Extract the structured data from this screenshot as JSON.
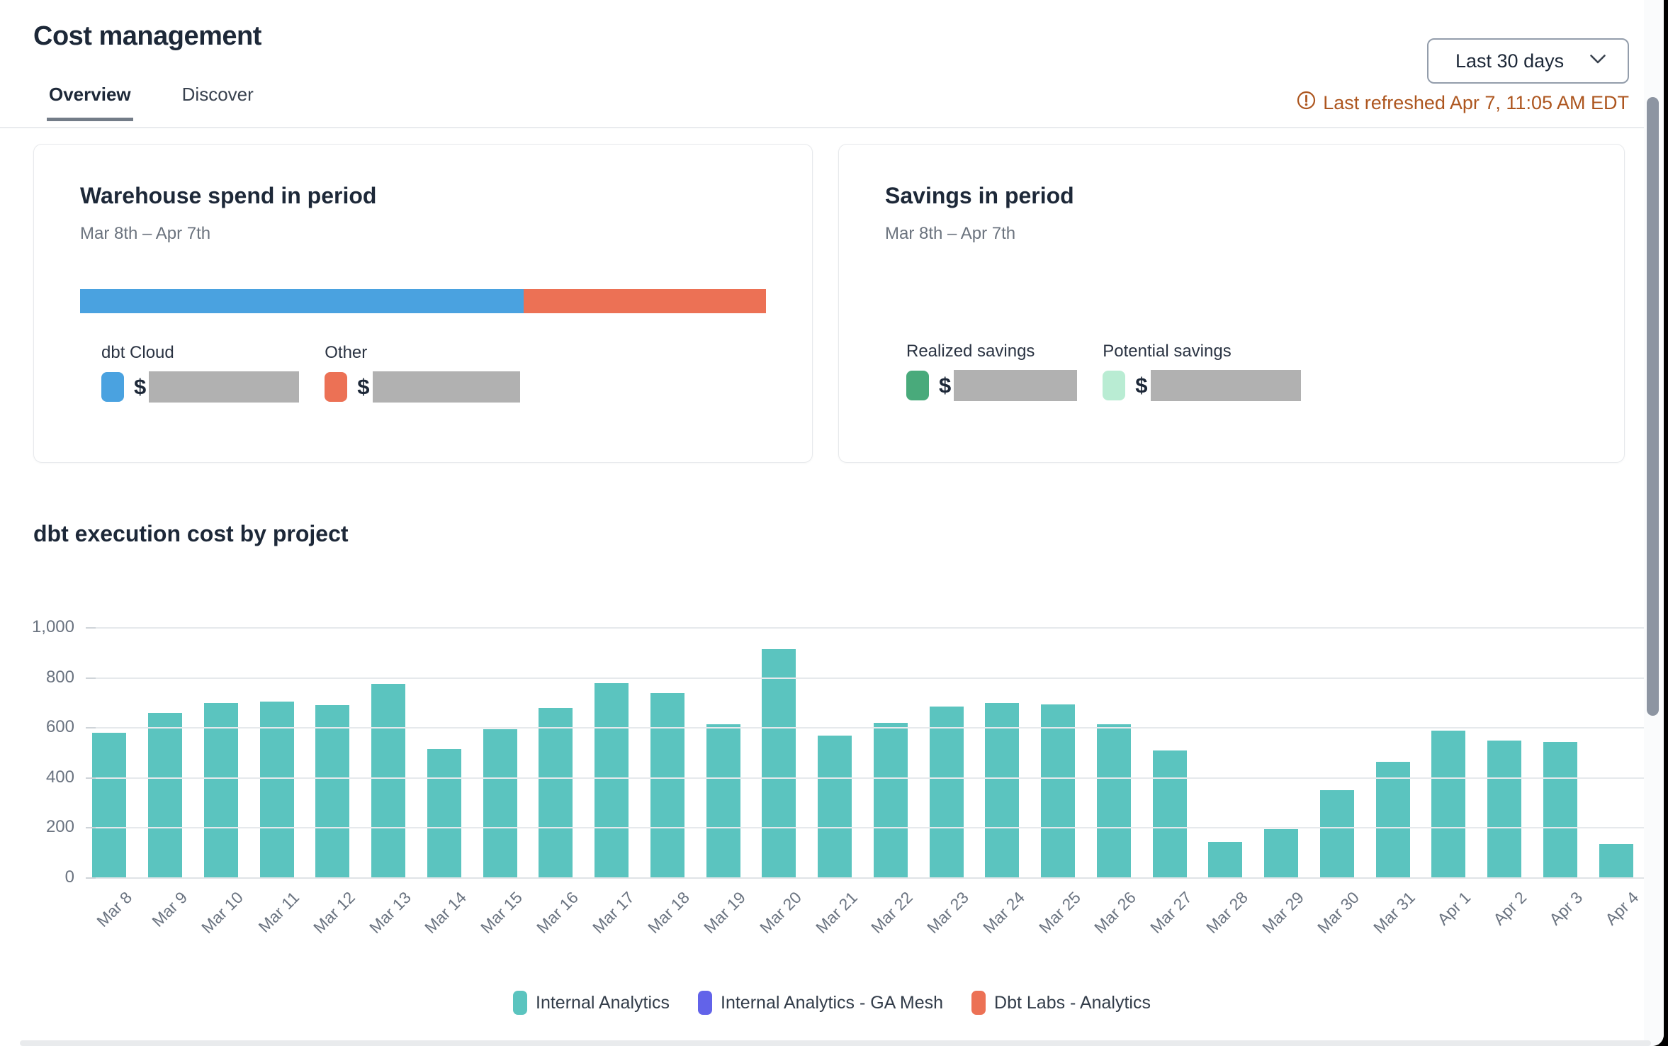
{
  "header": {
    "title": "Cost management",
    "range_label": "Last 30 days",
    "last_refreshed": "Last refreshed Apr 7, 11:05 AM EDT"
  },
  "tabs": [
    {
      "label": "Overview",
      "active": true
    },
    {
      "label": "Discover",
      "active": false
    }
  ],
  "warehouse_card": {
    "title": "Warehouse spend in period",
    "subtitle": "Mar 8th – Apr 7th",
    "currency_symbol": "$",
    "segments": [
      {
        "label": "dbt Cloud",
        "color": "#4aa2e0",
        "fraction": 0.647
      },
      {
        "label": "Other",
        "color": "#ec7155",
        "fraction": 0.353
      }
    ],
    "values_redacted": true
  },
  "savings_card": {
    "title": "Savings in period",
    "subtitle": "Mar 8th – Apr 7th",
    "currency_symbol": "$",
    "items": [
      {
        "label": "Realized savings",
        "color": "#49aa7b"
      },
      {
        "label": "Potential savings",
        "color": "#b9ecd3"
      }
    ],
    "values_redacted": true
  },
  "chart_section": {
    "title": "dbt execution cost by project"
  },
  "chart_data": {
    "type": "bar",
    "title": "dbt execution cost by project",
    "categories": [
      "Mar 8",
      "Mar 9",
      "Mar 10",
      "Mar 11",
      "Mar 12",
      "Mar 13",
      "Mar 14",
      "Mar 15",
      "Mar 16",
      "Mar 17",
      "Mar 18",
      "Mar 19",
      "Mar 20",
      "Mar 21",
      "Mar 22",
      "Mar 23",
      "Mar 24",
      "Mar 25",
      "Mar 26",
      "Mar 27",
      "Mar 28",
      "Mar 29",
      "Mar 30",
      "Mar 31",
      "Apr 1",
      "Apr 2",
      "Apr 3",
      "Apr 4"
    ],
    "series": [
      {
        "name": "Internal Analytics",
        "color": "#5bc4bf",
        "values": [
          580,
          660,
          700,
          705,
          690,
          775,
          515,
          595,
          680,
          780,
          740,
          615,
          915,
          570,
          620,
          685,
          700,
          695,
          615,
          510,
          145,
          195,
          350,
          465,
          590,
          550,
          545,
          135
        ]
      }
    ],
    "legend": [
      {
        "label": "Internal Analytics",
        "color": "#5bc4bf"
      },
      {
        "label": "Internal Analytics - GA Mesh",
        "color": "#6263e9"
      },
      {
        "label": "Dbt Labs - Analytics",
        "color": "#ec7155"
      }
    ],
    "xlabel": "",
    "ylabel": "",
    "ylim": [
      0,
      1000
    ],
    "yticks": [
      0,
      200,
      400,
      600,
      800,
      1000
    ],
    "grid": true,
    "legend_position": "bottom"
  }
}
